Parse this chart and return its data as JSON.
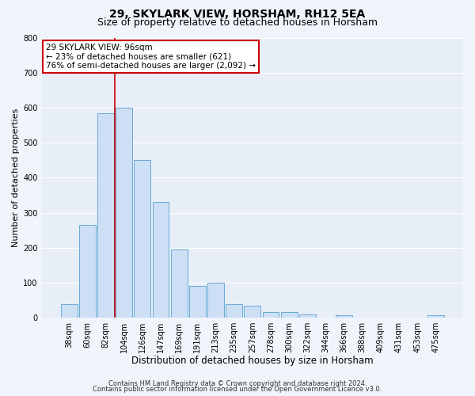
{
  "title1": "29, SKYLARK VIEW, HORSHAM, RH12 5EA",
  "title2": "Size of property relative to detached houses in Horsham",
  "xlabel": "Distribution of detached houses by size in Horsham",
  "ylabel": "Number of detached properties",
  "bar_labels": [
    "38sqm",
    "60sqm",
    "82sqm",
    "104sqm",
    "126sqm",
    "147sqm",
    "169sqm",
    "191sqm",
    "213sqm",
    "235sqm",
    "257sqm",
    "278sqm",
    "300sqm",
    "322sqm",
    "344sqm",
    "366sqm",
    "388sqm",
    "409sqm",
    "431sqm",
    "453sqm",
    "475sqm"
  ],
  "bar_values": [
    38,
    265,
    585,
    600,
    450,
    330,
    195,
    90,
    100,
    38,
    33,
    15,
    15,
    10,
    0,
    6,
    0,
    0,
    0,
    0,
    7
  ],
  "bar_color": "#ccdff5",
  "bar_edge_color": "#6aaad4",
  "background_color": "#e8eef8",
  "fig_background": "#f0f4fb",
  "grid_color": "#ffffff",
  "vline_color": "#cc0000",
  "vline_x_index": 2.5,
  "annotation_title": "29 SKYLARK VIEW: 96sqm",
  "annotation_line1": "← 23% of detached houses are smaller (621)",
  "annotation_line2": "76% of semi-detached houses are larger (2,092) →",
  "annotation_box_edgecolor": "#cc0000",
  "ylim": [
    0,
    800
  ],
  "yticks": [
    0,
    100,
    200,
    300,
    400,
    500,
    600,
    700,
    800
  ],
  "footer1": "Contains HM Land Registry data © Crown copyright and database right 2024.",
  "footer2": "Contains public sector information licensed under the Open Government Licence v3.0.",
  "title1_fontsize": 10,
  "title2_fontsize": 9,
  "xlabel_fontsize": 8.5,
  "ylabel_fontsize": 8,
  "tick_fontsize": 7,
  "ann_fontsize": 7.5,
  "footer_fontsize": 6
}
